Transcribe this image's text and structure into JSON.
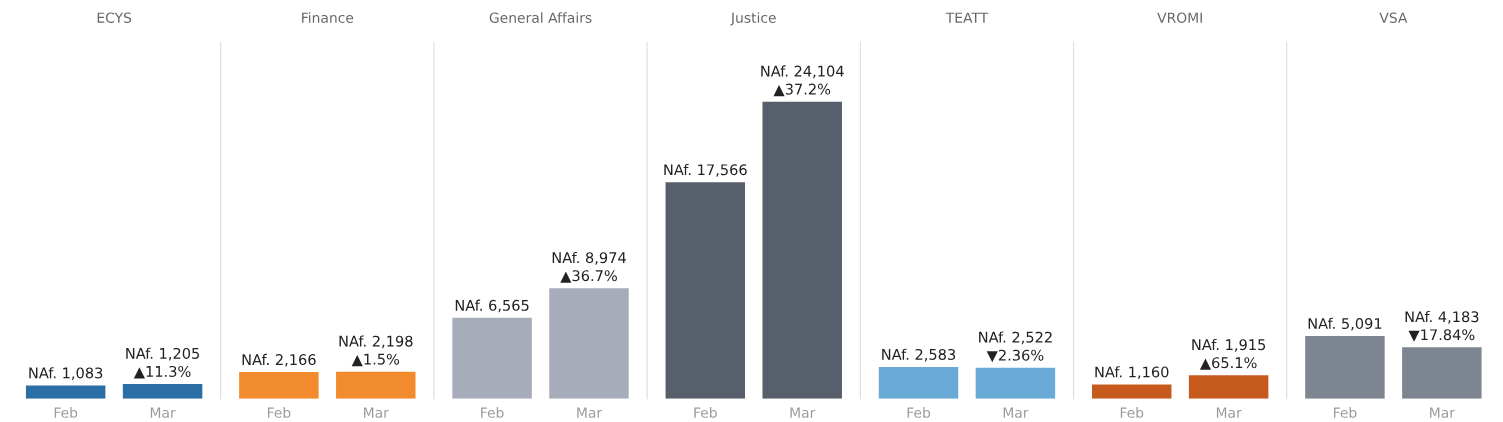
{
  "chart_data": [
    {
      "type": "bar",
      "title": "ECYS",
      "categories": [
        "Feb",
        "Mar"
      ],
      "values": [
        1083,
        1205
      ],
      "color": "#2b6ea6",
      "value_labels": [
        "NAf. 1,083",
        "NAf. 1,205\n▲11.3%"
      ],
      "tick_labels": "x",
      "grid": false,
      "legend": false
    },
    {
      "type": "bar",
      "title": "Finance",
      "categories": [
        "Feb",
        "Mar"
      ],
      "values": [
        2166,
        2198
      ],
      "color": "#f28a2e",
      "value_labels": [
        "NAf. 2,166",
        "NAf. 2,198\n▲1.5%"
      ],
      "tick_labels": "x",
      "grid": false,
      "legend": false
    },
    {
      "type": "bar",
      "title": "General Affairs",
      "categories": [
        "Feb",
        "Mar"
      ],
      "values": [
        6565,
        8974
      ],
      "color": "#a6acb9",
      "value_labels": [
        "NAf. 6,565",
        "NAf. 8,974\n▲36.7%"
      ],
      "tick_labels": "x",
      "grid": false,
      "legend": false
    },
    {
      "type": "bar",
      "title": "Justice",
      "categories": [
        "Feb",
        "Mar"
      ],
      "values": [
        17566,
        24104
      ],
      "color": "#565f6b",
      "value_labels": [
        "NAf. 17,566",
        "NAf. 24,104\n▲37.2%"
      ],
      "tick_labels": "x",
      "grid": false,
      "legend": false
    },
    {
      "type": "bar",
      "title": "TEATT",
      "categories": [
        "Feb",
        "Mar"
      ],
      "values": [
        2583,
        2522
      ],
      "color": "#6aaad6",
      "value_labels": [
        "NAf. 2,583",
        "NAf. 2,522\n▼2.36%"
      ],
      "tick_labels": "x",
      "grid": false,
      "legend": false
    },
    {
      "type": "bar",
      "title": "VROMI",
      "categories": [
        "Feb",
        "Mar"
      ],
      "values": [
        1160,
        1915
      ],
      "color": "#c55a1c",
      "value_labels": [
        "NAf. 1,160",
        "NAf. 1,915\n▲65.1%"
      ],
      "tick_labels": "x",
      "grid": false,
      "legend": false
    },
    {
      "type": "bar",
      "title": "VSA",
      "categories": [
        "Feb",
        "Mar"
      ],
      "values": [
        5091,
        4183
      ],
      "color": "#7d8591",
      "value_labels": [
        "NAf. 5,091",
        "NAf. 4,183\n▼17.84%"
      ],
      "tick_labels": "x",
      "grid": false,
      "legend": false
    }
  ]
}
